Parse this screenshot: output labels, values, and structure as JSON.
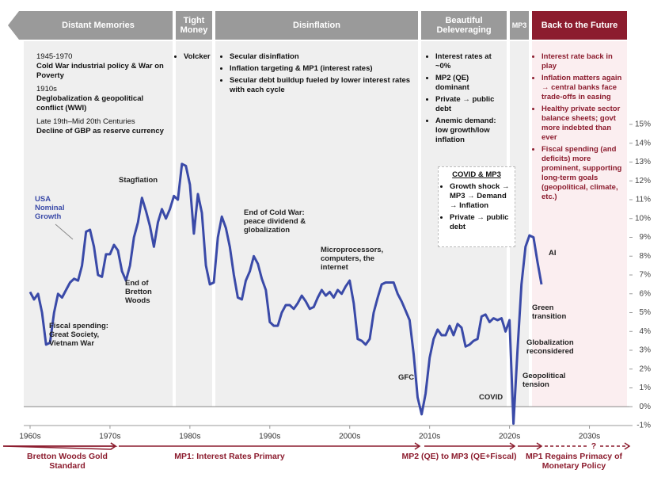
{
  "chart_data": {
    "type": "line",
    "xlim": [
      1960,
      2035
    ],
    "ylim": [
      -1,
      15
    ],
    "xticks": [
      {
        "value": 1960,
        "label": "1960s"
      },
      {
        "value": 1970,
        "label": "1970s"
      },
      {
        "value": 1980,
        "label": "1980s"
      },
      {
        "value": 1990,
        "label": "1990s"
      },
      {
        "value": 2000,
        "label": "2000s"
      },
      {
        "value": 2010,
        "label": "2010s"
      },
      {
        "value": 2020,
        "label": "2020s"
      },
      {
        "value": 2030,
        "label": "2030s"
      }
    ],
    "yticks": [
      {
        "value": -1,
        "label": "-1%"
      },
      {
        "value": 0,
        "label": "0%"
      },
      {
        "value": 1,
        "label": "1%"
      },
      {
        "value": 2,
        "label": "2%"
      },
      {
        "value": 3,
        "label": "3%"
      },
      {
        "value": 4,
        "label": "4%"
      },
      {
        "value": 5,
        "label": "5%"
      },
      {
        "value": 6,
        "label": "6%"
      },
      {
        "value": 7,
        "label": "7%"
      },
      {
        "value": 8,
        "label": "8%"
      },
      {
        "value": 9,
        "label": "9%"
      },
      {
        "value": 10,
        "label": "10%"
      },
      {
        "value": 11,
        "label": "11%"
      },
      {
        "value": 12,
        "label": "12%"
      },
      {
        "value": 13,
        "label": "13%"
      },
      {
        "value": 14,
        "label": "14%"
      },
      {
        "value": 15,
        "label": "15%"
      }
    ],
    "series": [
      {
        "name": "USA Nominal Growth",
        "color": "#3a4aa8",
        "x": [
          1960,
          1960.5,
          1961,
          1961.5,
          1962,
          1962.5,
          1963,
          1963.5,
          1964,
          1964.5,
          1965,
          1965.5,
          1966,
          1966.5,
          1967,
          1967.5,
          1968,
          1968.5,
          1969,
          1969.5,
          1970,
          1970.5,
          1971,
          1971.5,
          1972,
          1972.5,
          1973,
          1973.5,
          1974,
          1974.5,
          1975,
          1975.5,
          1976,
          1976.5,
          1977,
          1977.5,
          1978,
          1978.5,
          1979,
          1979.5,
          1980,
          1980.5,
          1981,
          1981.5,
          1982,
          1982.5,
          1983,
          1983.5,
          1984,
          1984.5,
          1985,
          1985.5,
          1986,
          1986.5,
          1987,
          1987.5,
          1988,
          1988.5,
          1989,
          1989.5,
          1990,
          1990.5,
          1991,
          1991.5,
          1992,
          1992.5,
          1993,
          1993.5,
          1994,
          1994.5,
          1995,
          1995.5,
          1996,
          1996.5,
          1997,
          1997.5,
          1998,
          1998.5,
          1999,
          1999.5,
          2000,
          2000.5,
          2001,
          2001.5,
          2002,
          2002.5,
          2003,
          2003.5,
          2004,
          2004.5,
          2005,
          2005.5,
          2006,
          2006.5,
          2007,
          2007.5,
          2008,
          2008.5,
          2009,
          2009.5,
          2010,
          2010.5,
          2011,
          2011.5,
          2012,
          2012.5,
          2013,
          2013.5,
          2014,
          2014.5,
          2015,
          2015.5,
          2016,
          2016.5,
          2017,
          2017.5,
          2018,
          2018.5,
          2019,
          2019.5,
          2020,
          2020.5,
          2021,
          2021.5,
          2022,
          2022.5,
          2023,
          2023.5,
          2024
        ],
        "values": [
          6.1,
          5.7,
          6.0,
          5.0,
          3.3,
          3.4,
          5.0,
          6.0,
          5.8,
          6.2,
          6.6,
          6.8,
          6.7,
          7.5,
          9.3,
          9.4,
          8.5,
          7.0,
          6.9,
          8.1,
          8.1,
          8.6,
          8.3,
          7.2,
          6.7,
          7.5,
          9.0,
          9.8,
          11.1,
          10.4,
          9.6,
          8.5,
          9.8,
          10.5,
          10.0,
          10.5,
          11.2,
          11.0,
          12.9,
          12.8,
          11.8,
          9.2,
          11.3,
          10.3,
          7.5,
          6.5,
          6.6,
          9.0,
          10.1,
          9.5,
          8.5,
          7.0,
          5.8,
          5.7,
          6.7,
          7.2,
          8.0,
          7.6,
          6.8,
          6.2,
          4.5,
          4.3,
          4.3,
          5.0,
          5.4,
          5.4,
          5.2,
          5.5,
          5.9,
          5.6,
          5.2,
          5.3,
          5.8,
          6.2,
          5.9,
          6.1,
          5.8,
          6.2,
          6.0,
          6.4,
          6.7,
          5.5,
          3.6,
          3.5,
          3.3,
          3.6,
          5.0,
          5.8,
          6.5,
          6.6,
          6.6,
          6.6,
          6.0,
          5.6,
          5.1,
          4.6,
          2.8,
          0.5,
          -0.4,
          0.7,
          2.6,
          3.6,
          4.1,
          3.8,
          3.8,
          4.3,
          3.8,
          4.4,
          4.2,
          3.2,
          3.3,
          3.5,
          3.6,
          4.8,
          4.9,
          4.5,
          4.7,
          4.6,
          4.7,
          4.0,
          4.6,
          -0.9,
          3.0,
          6.5,
          8.5,
          9.1,
          9.0,
          7.7,
          6.5
        ]
      }
    ],
    "eras": [
      {
        "label": "Distant Memories",
        "notes": [
          {
            "period": "1945-1970",
            "text": "Cold War industrial policy & War on Poverty"
          },
          {
            "period": "1910s",
            "text": "Deglobalization & geopolitical conflict (WWI)"
          },
          {
            "period": "Late 19th–Mid 20th Centuries",
            "text": "Decline of GBP as reserve currency"
          }
        ]
      },
      {
        "label": "Tight Money",
        "bullets": [
          "Volcker"
        ]
      },
      {
        "label": "Disinflation",
        "bullets": [
          "Secular disinflation",
          "Inflation targeting & MP1 (interest rates)",
          "Secular debt buildup fueled by lower interest rates with each cycle"
        ]
      },
      {
        "label": "Beautiful Deleveraging",
        "bullets": [
          "Interest rates at ~0%",
          "MP2 (QE) dominant",
          "Private → public debt",
          "Anemic demand: low growth/low inflation"
        ]
      },
      {
        "label": "MP3"
      },
      {
        "label": "Back to the Future",
        "bullets": [
          "Interest rate back in play",
          "Inflation matters again → central banks face trade-offs in easing",
          "Healthy private sector balance sheets; govt more indebted than ever",
          "Fiscal spending (and deficits) more prominent, supporting long-term goals (geopolitical, climate, etc.)"
        ]
      }
    ],
    "covid_box": {
      "title": "COVID & MP3",
      "bullets": [
        "Growth shock → MP3 → Demand → Inflation",
        "Private → public debt"
      ]
    },
    "annotations": [
      "Stagflation",
      "End of Bretton Woods",
      "Fiscal spending: Great Society, Vietnam War",
      "End of Cold War: peace dividend & globalization",
      "Microprocessors, computers, the internet",
      "GFC",
      "COVID",
      "AI",
      "Green transition",
      "Globalization reconsidered",
      "Geopolitical tension"
    ],
    "regimes": [
      "Bretton Woods Gold Standard",
      "MP1: Interest Rates Primary",
      "MP2 (QE) to MP3 (QE+Fiscal)",
      "MP1 Regains Primacy of Monetary Policy",
      "?"
    ]
  }
}
